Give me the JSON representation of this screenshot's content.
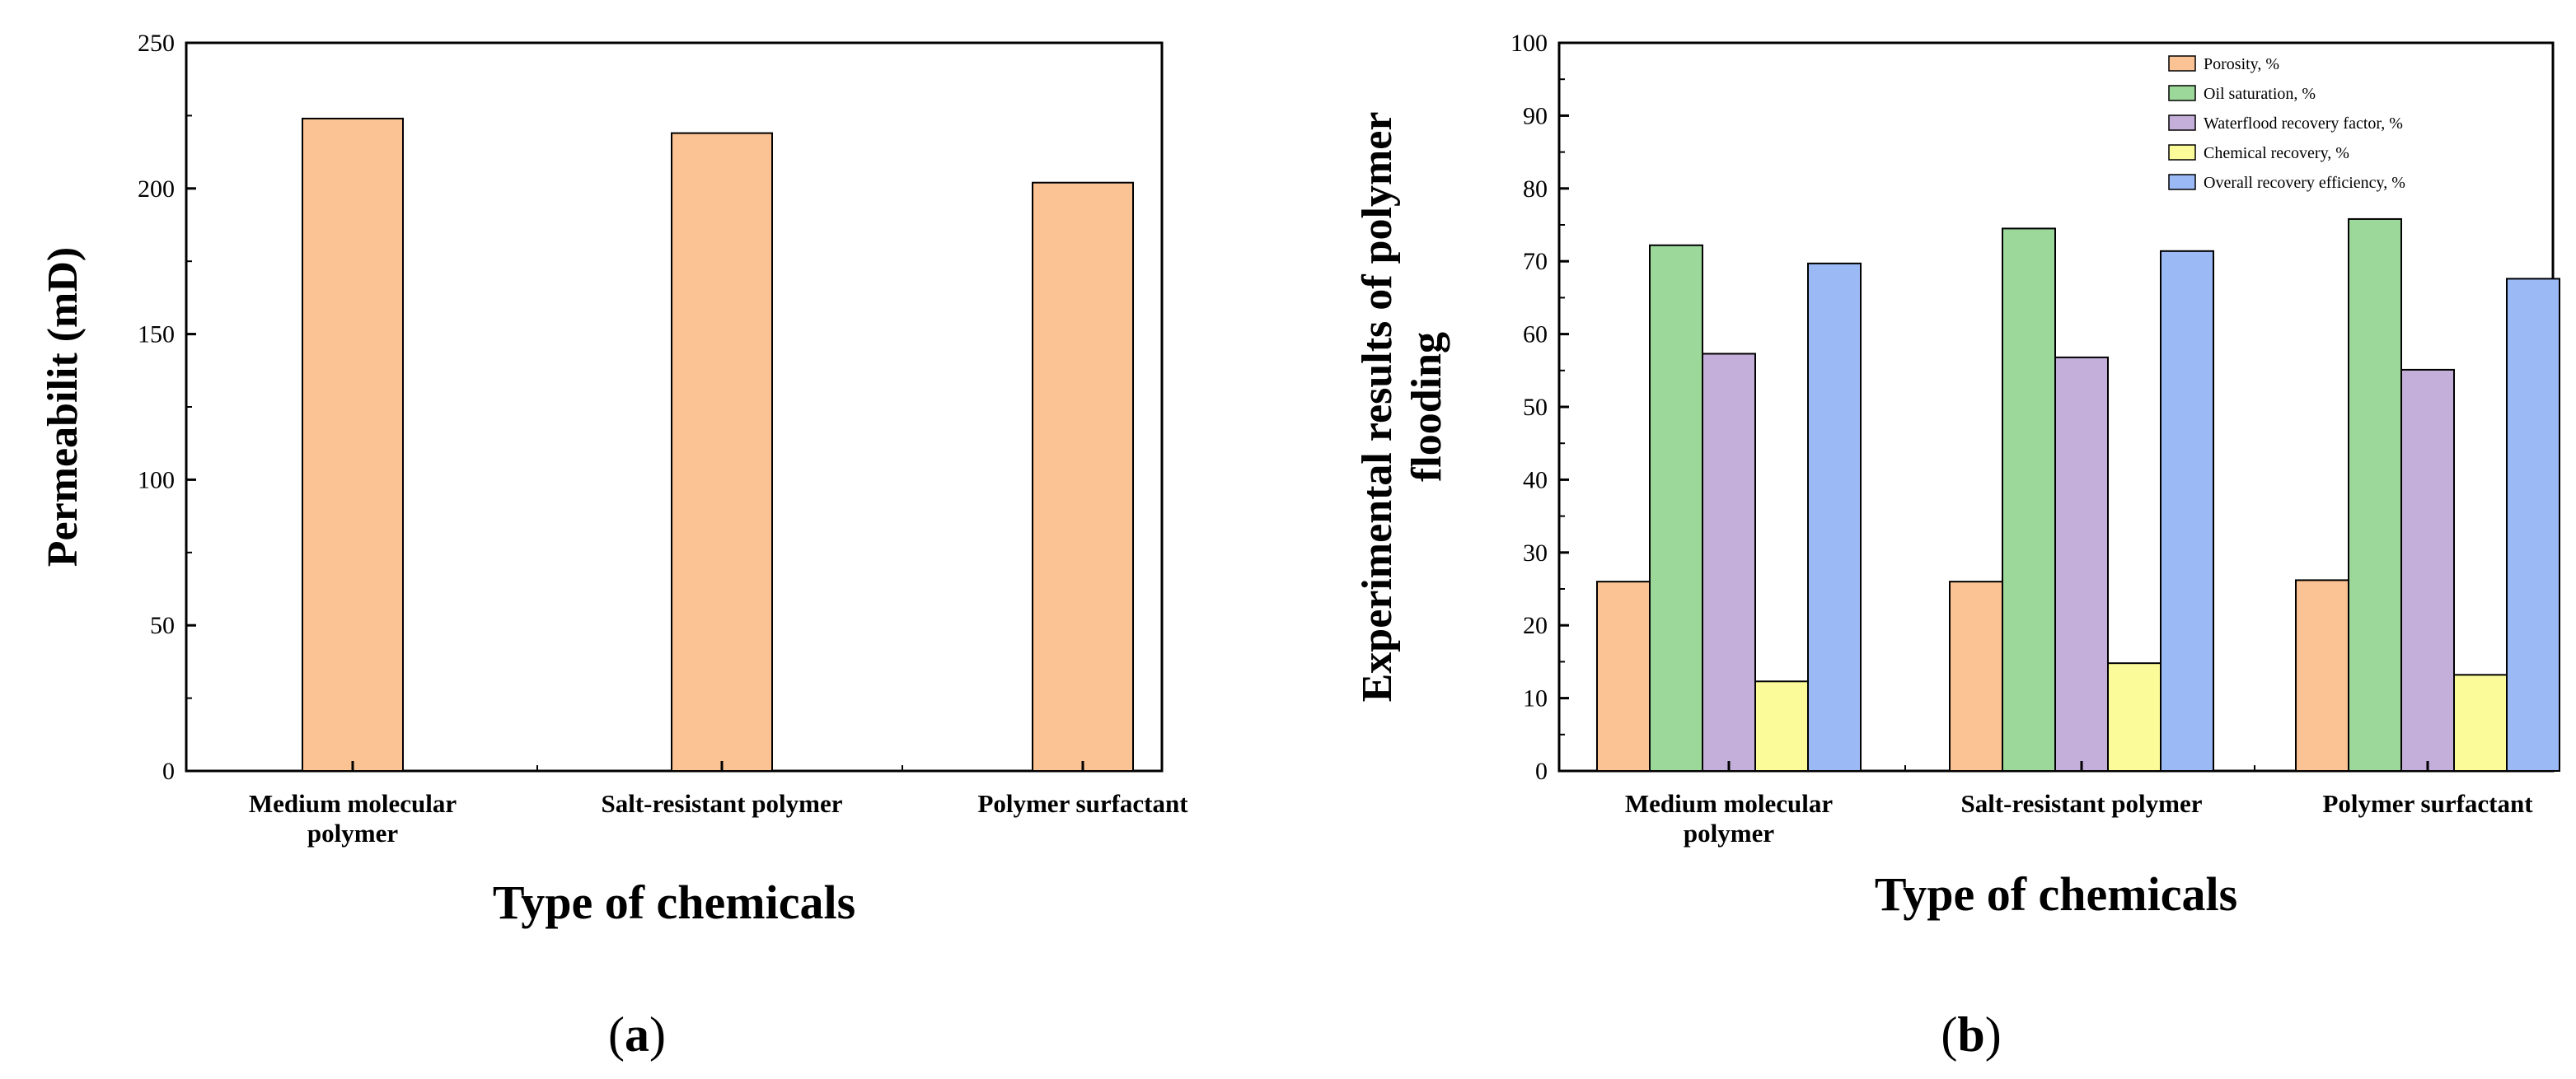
{
  "chart_data": [
    {
      "panel": "a",
      "type": "bar",
      "categories": [
        "Medium molecular polymer",
        "Salt-resistant polymer",
        "Polymer surfactant"
      ],
      "category_lines": [
        [
          "Medium molecular",
          "polymer"
        ],
        [
          "Salt-resistant polymer"
        ],
        [
          "Polymer surfactant"
        ]
      ],
      "series": [
        {
          "name": "Permeability",
          "values": [
            224,
            219,
            202
          ],
          "color": "#FBC393"
        }
      ],
      "xlabel": "Type of chemicals",
      "ylabel": "Permeabilit (mD)",
      "ylim": [
        0,
        250
      ],
      "yticks": [
        0,
        50,
        100,
        150,
        200,
        250
      ],
      "grid": false
    },
    {
      "panel": "b",
      "type": "bar",
      "categories": [
        "Medium molecular polymer",
        "Salt-resistant polymer",
        "Polymer surfactant"
      ],
      "category_lines": [
        [
          "Medium molecular",
          "polymer"
        ],
        [
          "Salt-resistant polymer"
        ],
        [
          "Polymer surfactant"
        ]
      ],
      "series": [
        {
          "name": "Porosity, %",
          "values": [
            26,
            26,
            26.2
          ],
          "color": "#FBC393"
        },
        {
          "name": "Oil saturation, %",
          "values": [
            72.2,
            74.5,
            75.8
          ],
          "color": "#9CD89A"
        },
        {
          "name": "Waterflood recovery factor, %",
          "values": [
            57.3,
            56.8,
            55.1
          ],
          "color": "#C4AEDA"
        },
        {
          "name": "Chemical recovery, %",
          "values": [
            12.3,
            14.8,
            13.2
          ],
          "color": "#FBFB99"
        },
        {
          "name": "Overall recovery efficiency, %",
          "values": [
            69.7,
            71.4,
            67.6
          ],
          "color": "#9BB9F5"
        }
      ],
      "xlabel": "Type of chemicals",
      "ylabel_lines": [
        "Experimental results of polymer",
        "flooding"
      ],
      "ylim": [
        0,
        100
      ],
      "yticks": [
        0,
        10,
        20,
        30,
        40,
        50,
        60,
        70,
        80,
        90,
        100
      ],
      "legend_position": "top-right",
      "grid": false
    }
  ],
  "panel_labels": {
    "a": {
      "open": "(",
      "letter": "a",
      "close": ")"
    },
    "b": {
      "open": "(",
      "letter": "b",
      "close": ")"
    }
  }
}
